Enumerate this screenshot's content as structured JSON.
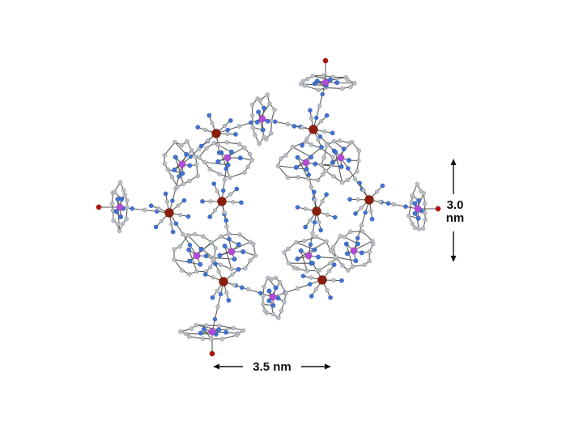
{
  "figure": {
    "dimension_width": {
      "label": "3.5 nm"
    },
    "dimension_height": {
      "value": "3.0",
      "unit": "nm"
    }
  },
  "colors": {
    "background": "#ffffff",
    "bond": "#5a5a5a",
    "carbon": "#b9bec4",
    "nitrogen": "#3d73d6",
    "cobalt": "#8a1e0c",
    "manganese": "#b54bd8",
    "oxygen": "#b5120c",
    "arrow": "#111111"
  },
  "legend_atoms": [
    "carbon",
    "nitrogen",
    "cobalt",
    "manganese",
    "oxygen"
  ]
}
